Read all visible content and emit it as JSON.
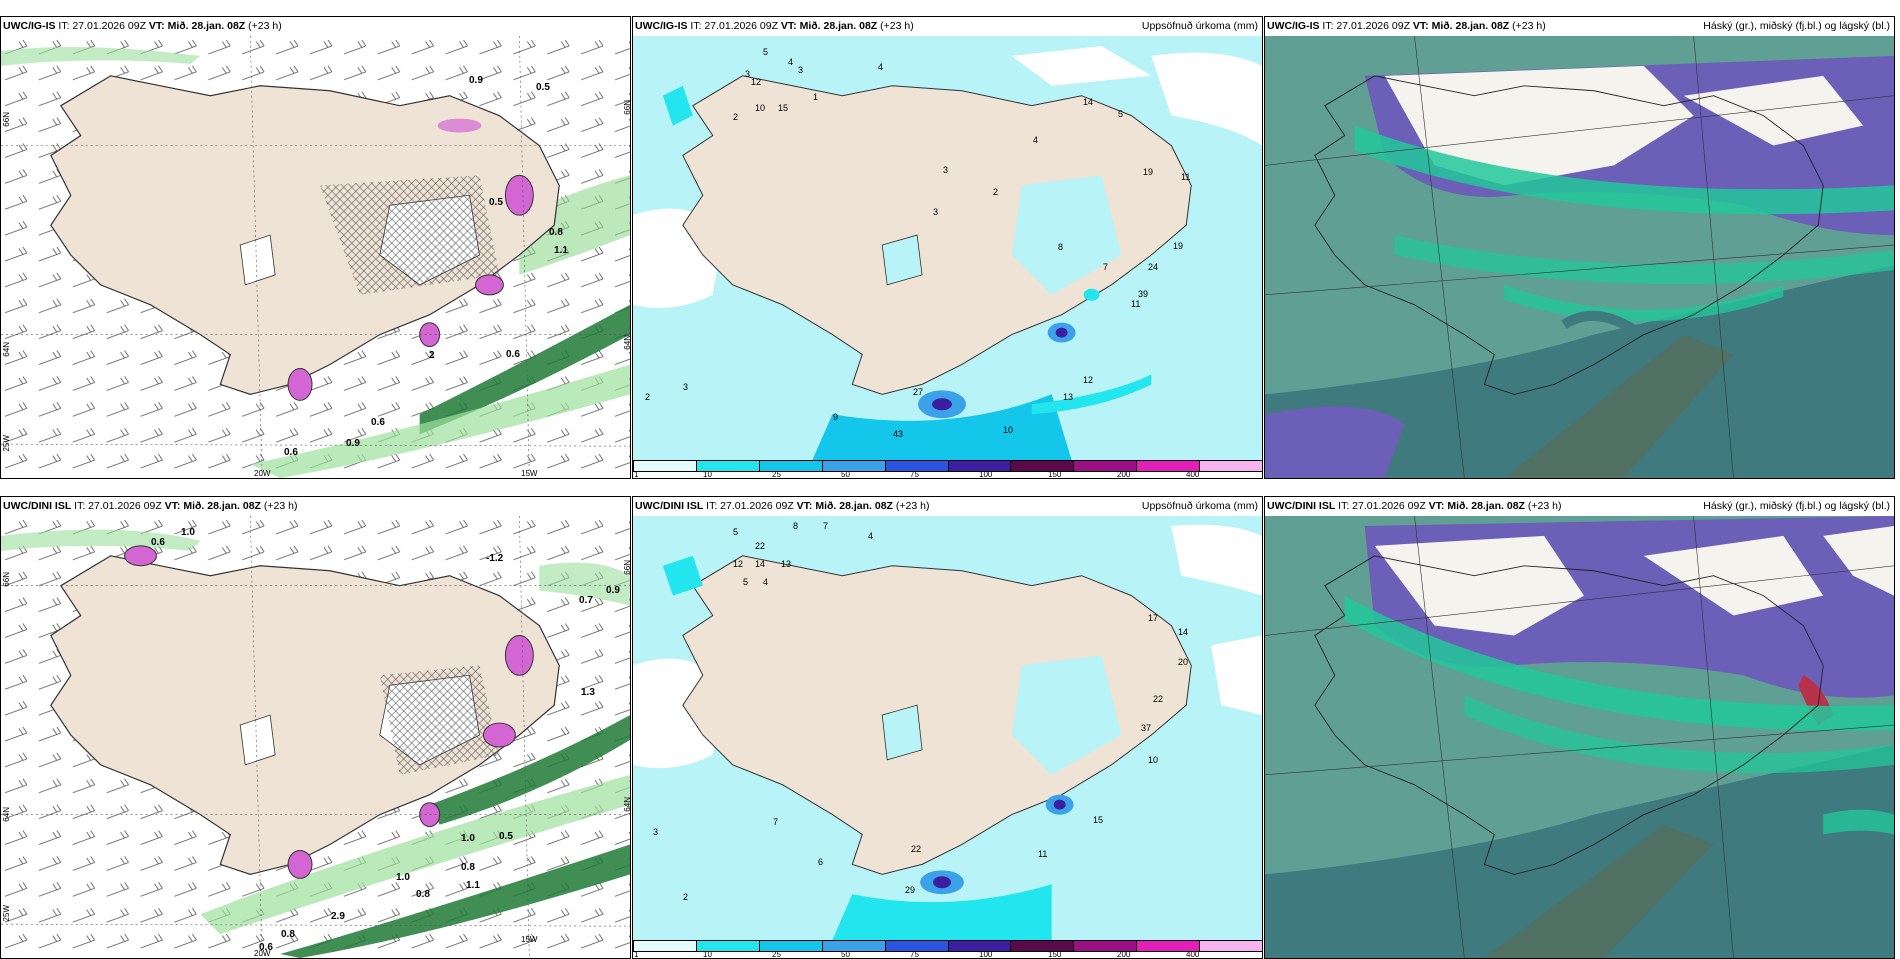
{
  "colors": {
    "land": "#efe3d5",
    "precip_light": "#b8f4f7",
    "ocean_cloud": "#5f9f94",
    "ocean_dark": "#3e7a7e",
    "cloud_purple": "#6b5fb8",
    "cloud_green": "#22c79a",
    "rain_green": "#7fd88a",
    "purple_precip": "#d466d4"
  },
  "panels": [
    {
      "id": "r1c1",
      "model": "UWC/IG-IS",
      "it_label": "IT: 27.01.2026 09Z",
      "vt_label": "VT: Mið. 28.jan. 08Z",
      "lead": "(+23 h)",
      "right_title": "",
      "axis": {
        "lat_top": "66N",
        "lat_mid": "64N",
        "lon_left": "25W",
        "lon_b1": "20W",
        "lon_b2": "15W",
        "right_top": "66N",
        "right_mid": "64N"
      },
      "values": [
        "0.9",
        "0.5",
        "0.6",
        "0.6",
        "0.9",
        "0.6",
        "0.8",
        "1.1",
        "0.5",
        "2"
      ]
    },
    {
      "id": "r1c2",
      "model": "UWC/IG-IS",
      "it_label": "IT: 27.01.2026 09Z",
      "vt_label": "VT: Mið. 28.jan. 08Z",
      "lead": "(+23 h)",
      "right_title": "Uppsöfnuð úrkoma (mm)",
      "values": [
        "5",
        "4",
        "3",
        "4",
        "3",
        "1",
        "2",
        "12",
        "10",
        "15",
        "3",
        "2",
        "3",
        "4",
        "14",
        "5",
        "19",
        "11",
        "19",
        "24",
        "39",
        "11",
        "12",
        "13",
        "10",
        "8",
        "7",
        "9",
        "27",
        "43",
        "2",
        "3"
      ]
    },
    {
      "id": "r1c3",
      "model": "UWC/IG-IS",
      "it_label": "IT: 27.01.2026 09Z",
      "vt_label": "VT: Mið. 28.jan. 08Z",
      "lead": "(+23 h)",
      "right_title": "Háský (gr.), miðský (fj.bl.) og lágský (bl.)"
    },
    {
      "id": "r2c1",
      "model": "UWC/DINI ISL",
      "it_label": "IT: 27.01.2026 09Z",
      "vt_label": "VT: Mið. 28.jan. 08Z",
      "lead": "(+23 h)",
      "right_title": "",
      "axis": {
        "lat_top": "66N",
        "lat_mid": "64N",
        "lon_left": "25W",
        "lon_b1": "20W",
        "lon_b2": "15W",
        "right_top": "66N",
        "right_mid": "64N"
      },
      "values": [
        "1.0",
        "0.6",
        "-1.2",
        "0.7",
        "0.9",
        "1.0",
        "0.5",
        "0.8",
        "1.0",
        "0.8",
        "0.6",
        "0.8",
        "2.9",
        "1.1",
        "1.3"
      ]
    },
    {
      "id": "r2c2",
      "model": "UWC/DINI ISL",
      "it_label": "IT: 27.01.2026 09Z",
      "vt_label": "VT: Mið. 28.jan. 08Z",
      "lead": "(+23 h)",
      "right_title": "Uppsöfnuð úrkoma (mm)",
      "values": [
        "5",
        "8",
        "7",
        "4",
        "22",
        "14",
        "12",
        "13",
        "5",
        "4",
        "17",
        "14",
        "20",
        "22",
        "37",
        "10",
        "15",
        "11",
        "22",
        "29",
        "3",
        "2",
        "6",
        "7"
      ]
    },
    {
      "id": "r2c3",
      "model": "UWC/DINI ISL",
      "it_label": "IT: 27.01.2026 09Z",
      "vt_label": "VT: Mið. 28.jan. 08Z",
      "lead": "(+23 h)",
      "right_title": "Háský (gr.), miðský (fj.bl.) og lágský (bl.)"
    }
  ],
  "precip_scale": {
    "labels": [
      "1",
      "10",
      "25",
      "50",
      "75",
      "100",
      "150",
      "200",
      "400"
    ],
    "colors": [
      "#e4fbfc",
      "#22e5ee",
      "#14c6ea",
      "#3ba2ea",
      "#2b55e0",
      "#3c1ea0",
      "#5a0a4a",
      "#9a0f82",
      "#e21fb8",
      "#f7b4ef"
    ]
  }
}
